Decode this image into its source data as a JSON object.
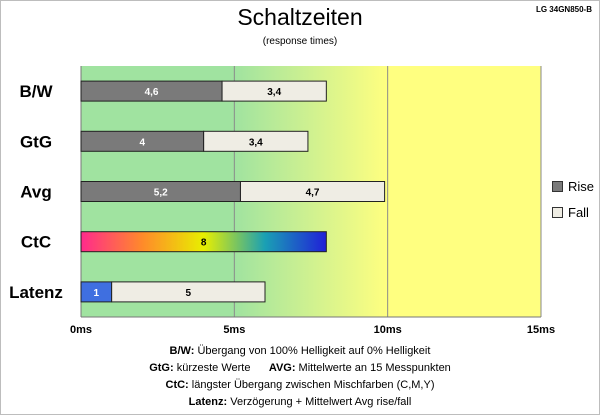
{
  "header": {
    "title": "Schaltzeiten",
    "subtitle": "(response times)",
    "model": "LG 34GN850-B"
  },
  "chart_data": {
    "type": "bar",
    "orientation": "horizontal",
    "stacked": true,
    "title": "Schaltzeiten",
    "subtitle": "(response times)",
    "categories": [
      "B/W",
      "GtG",
      "Avg",
      "CtC",
      "Latenz"
    ],
    "series": [
      {
        "name": "Rise",
        "values": [
          4.6,
          4,
          5.2,
          null,
          1
        ],
        "color": "#7a7a7a"
      },
      {
        "name": "Fall",
        "values": [
          3.4,
          3.4,
          4.7,
          null,
          5
        ],
        "color": "#efede4"
      }
    ],
    "single_values": {
      "CtC": 8
    },
    "data_labels": [
      [
        "4,6",
        "3,4"
      ],
      [
        "4",
        "3,4"
      ],
      [
        "5,2",
        "4,7"
      ],
      [
        "8"
      ],
      [
        "1",
        "5"
      ]
    ],
    "xlim": [
      0,
      15
    ],
    "xticks": [
      "0ms",
      "5ms",
      "10ms",
      "15ms"
    ],
    "xtick_values": [
      0,
      5,
      10,
      15
    ],
    "legend": {
      "position": "right",
      "entries": [
        "Rise",
        "Fall"
      ]
    },
    "background_zones": {
      "green_until": 5,
      "gradient_until": 10,
      "yellow_until": 15
    },
    "colors": {
      "green": "#a0e3a0",
      "yellow": "#ffff80",
      "latency_rise": "#3f6fe0",
      "ctc_gradient": [
        "#ff2a8c",
        "#ff8a2a",
        "#e8ef00",
        "#1aa0b4",
        "#2020d8"
      ]
    }
  },
  "footnotes": [
    {
      "key": "B/W",
      "sep": ":",
      "text": "  Übergang von 100% Helligkeit auf 0% Helligkeit"
    },
    {
      "key": "GtG:",
      "text": " kürzeste  Werte",
      "key2": "AVG:",
      "text2": " Mittelwerte an 15 Messpunkten"
    },
    {
      "key": "CtC:",
      "text": " längster Übergang  zwischen Mischfarben (C,M,Y)"
    },
    {
      "key": "Latenz:",
      "text": " Verzögerung  + Mittelwert  Avg rise/fall"
    }
  ]
}
